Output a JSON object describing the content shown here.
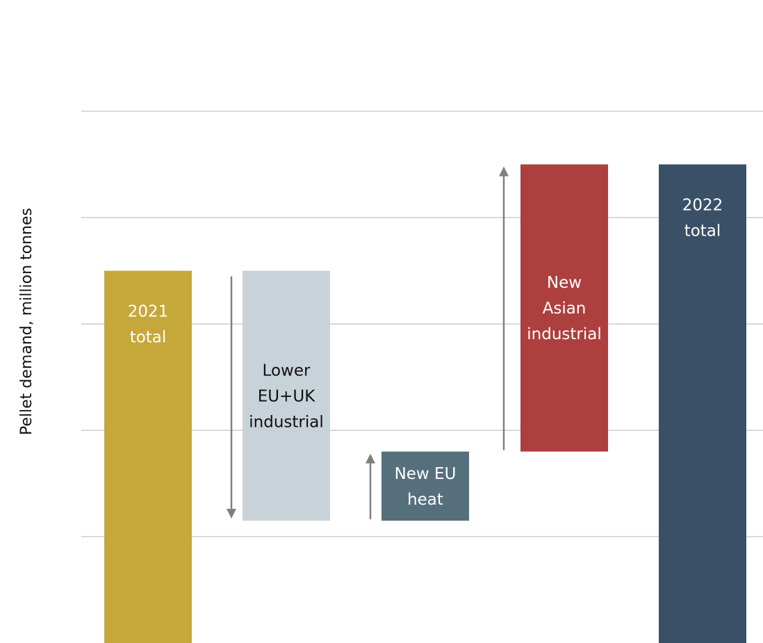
{
  "chart_data": {
    "type": "bar",
    "subtype": "waterfall",
    "title": "",
    "xlabel": "",
    "ylabel": "Pellet demand, million tonnes",
    "ylim": [
      0,
      5.5
    ],
    "grid": true,
    "legend": "none",
    "categories": [
      "2021 total",
      "Lower EU+UK industrial",
      "New EU heat",
      "New Asian industrial",
      "2022 total"
    ],
    "bars": [
      {
        "label": "2021 total",
        "label_lines": [
          "2021",
          "total"
        ],
        "start": 0,
        "end": 3.5,
        "kind": "total",
        "color": "#c6a73a",
        "text_color": "#ffffff"
      },
      {
        "label": "Lower EU+UK industrial",
        "label_lines": [
          "Lower",
          "EU+UK",
          "industrial"
        ],
        "start": 3.5,
        "end": 1.15,
        "kind": "decrease",
        "color": "#c8d2d9",
        "text_color": "#111111"
      },
      {
        "label": "New EU heat",
        "label_lines": [
          "New EU",
          "heat"
        ],
        "start": 1.15,
        "end": 1.8,
        "kind": "increase",
        "color": "#566f7d",
        "text_color": "#ffffff"
      },
      {
        "label": "New Asian industrial",
        "label_lines": [
          "New",
          "Asian",
          "industrial"
        ],
        "start": 1.8,
        "end": 4.5,
        "kind": "increase",
        "color": "#ad3f3e",
        "text_color": "#ffffff"
      },
      {
        "label": "2022 total",
        "label_lines": [
          "2022",
          "total"
        ],
        "start": 0,
        "end": 4.5,
        "kind": "total",
        "color": "#3a5067",
        "text_color": "#ffffff"
      }
    ],
    "arrow_color": "#808080",
    "grid_color": "#d9d9d9"
  }
}
